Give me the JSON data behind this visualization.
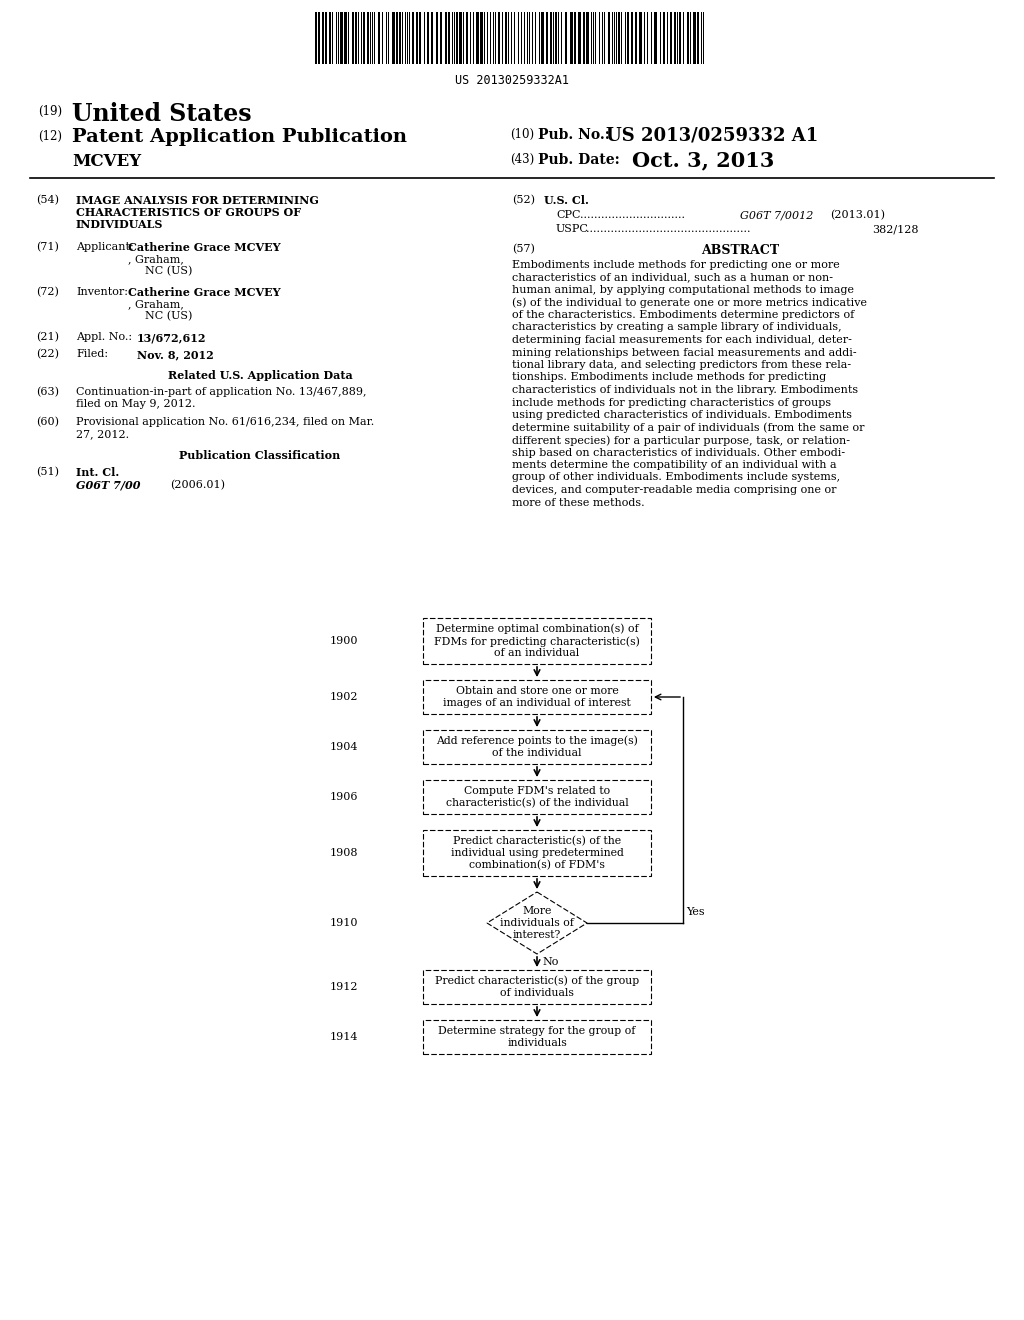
{
  "background_color": "#ffffff",
  "barcode_text": "US 20130259332A1",
  "header": {
    "line1_num": "(19)",
    "line1_text": "United States",
    "line2_num": "(12)",
    "line2_text": "Patent Application Publication",
    "line3_text": "MCVEY",
    "right_num1": "(10)",
    "right_label1": "Pub. No.:",
    "right_val1": "US 2013/0259332 A1",
    "right_num2": "(43)",
    "right_label2": "Pub. Date:",
    "right_val2": "Oct. 3, 2013"
  },
  "abstract_lines": [
    "Embodiments include methods for predicting one or more",
    "characteristics of an individual, such as a human or non-",
    "human animal, by applying computational methods to image",
    "(s) of the individual to generate one or more metrics indicative",
    "of the characteristics. Embodiments determine predictors of",
    "characteristics by creating a sample library of individuals,",
    "determining facial measurements for each individual, deter-",
    "mining relationships between facial measurements and addi-",
    "tional library data, and selecting predictors from these rela-",
    "tionships. Embodiments include methods for predicting",
    "characteristics of individuals not in the library. Embodiments",
    "include methods for predicting characteristics of groups",
    "using predicted characteristics of individuals. Embodiments",
    "determine suitability of a pair of individuals (from the same or",
    "different species) for a particular purpose, task, or relation-",
    "ship based on characteristics of individuals. Other embodi-",
    "ments determine the compatibility of an individual with a",
    "group of other individuals. Embodiments include systems,",
    "devices, and computer-readable media comprising one or",
    "more of these methods."
  ],
  "flowchart_nodes": [
    {
      "id": "1900",
      "label": "Determine optimal combination(s) of\nFDMs for predicting characteristic(s)\nof an individual",
      "lines": 3
    },
    {
      "id": "1902",
      "label": "Obtain and store one or more\nimages of an individual of interest",
      "lines": 2
    },
    {
      "id": "1904",
      "label": "Add reference points to the image(s)\nof the individual",
      "lines": 2
    },
    {
      "id": "1906",
      "label": "Compute FDM's related to\ncharacteristic(s) of the individual",
      "lines": 2
    },
    {
      "id": "1908",
      "label": "Predict characteristic(s) of the\nindividual using predetermined\ncombination(s) of FDM's",
      "lines": 3
    },
    {
      "id": "1910",
      "label": "More\nindividuals of\ninterest?",
      "lines": 3,
      "type": "diamond"
    },
    {
      "id": "1912",
      "label": "Predict characteristic(s) of the group\nof individuals",
      "lines": 2
    },
    {
      "id": "1914",
      "label": "Determine strategy for the group of\nindividuals",
      "lines": 2
    }
  ]
}
